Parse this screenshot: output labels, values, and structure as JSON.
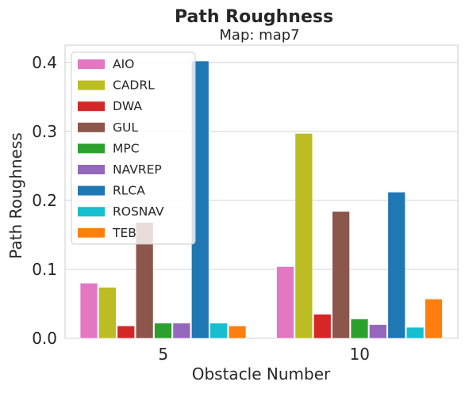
{
  "chart_data": {
    "type": "bar",
    "title": "Path Roughness",
    "subtitle": "Map: map7",
    "xlabel": "Obstacle Number",
    "ylabel": "Path Roughness",
    "categories": [
      "5",
      "10"
    ],
    "ylim": [
      0,
      0.425
    ],
    "yticks": [
      "0.0",
      "0.1",
      "0.2",
      "0.3",
      "0.4"
    ],
    "ytick_values": [
      0.0,
      0.1,
      0.2,
      0.3,
      0.4
    ],
    "grid": true,
    "legend_position": "top-left",
    "series": [
      {
        "name": "AIO",
        "color": "#e377c2",
        "values": [
          0.08,
          0.104
        ]
      },
      {
        "name": "CADRL",
        "color": "#bcbd22",
        "values": [
          0.074,
          0.297
        ]
      },
      {
        "name": "DWA",
        "color": "#d62728",
        "values": [
          0.018,
          0.035
        ]
      },
      {
        "name": "GUL",
        "color": "#8c564b",
        "values": [
          0.168,
          0.184
        ]
      },
      {
        "name": "MPC",
        "color": "#2ca02c",
        "values": [
          0.022,
          0.028
        ]
      },
      {
        "name": "NAVREP",
        "color": "#9467bd",
        "values": [
          0.022,
          0.02
        ]
      },
      {
        "name": "RLCA",
        "color": "#1f77b4",
        "values": [
          0.402,
          0.212
        ]
      },
      {
        "name": "ROSNAV",
        "color": "#17becf",
        "values": [
          0.022,
          0.016
        ]
      },
      {
        "name": "TEB",
        "color": "#ff7f0e",
        "values": [
          0.018,
          0.057
        ]
      }
    ]
  }
}
